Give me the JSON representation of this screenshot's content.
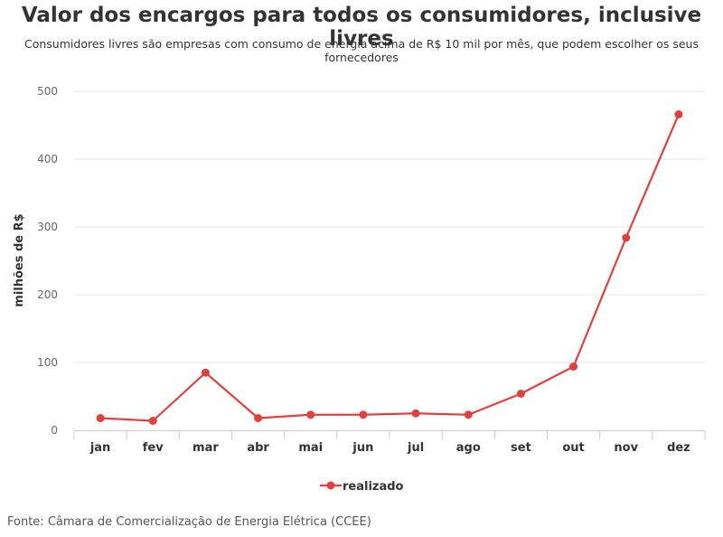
{
  "title": "Valor dos encargos para todos os consumidores, inclusive livres",
  "subtitle": "Consumidores livres são empresas com consumo de energia acima de R$ 10 mil por mês, que podem escolher os seus fornecedores",
  "source": "Fonte: Câmara de Comercialização de Energia Elétrica (CCEE)",
  "colors": {
    "series": "#e0413e",
    "grid": "#e6e6e6",
    "axis": "#cccccc"
  },
  "chart_data": {
    "type": "line",
    "categories": [
      "jan",
      "fev",
      "mar",
      "abr",
      "mai",
      "jun",
      "jul",
      "ago",
      "set",
      "out",
      "nov",
      "dez"
    ],
    "series": [
      {
        "name": "realizado",
        "values": [
          18,
          14,
          85,
          18,
          23,
          23,
          25,
          23,
          54,
          94,
          284,
          466
        ]
      }
    ],
    "ylabel": "milhões de R$",
    "xlabel": "",
    "ylim": [
      0,
      500
    ],
    "yticks": [
      0,
      100,
      200,
      300,
      400,
      500
    ],
    "grid": true,
    "legend": "bottom-center"
  }
}
